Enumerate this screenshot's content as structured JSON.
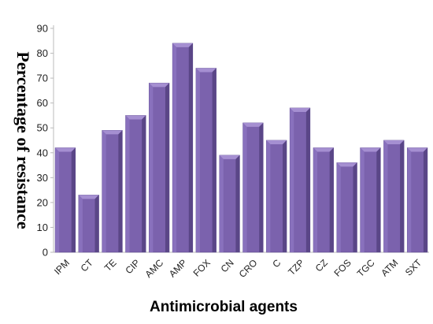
{
  "chart_data": {
    "type": "bar",
    "title": "",
    "xlabel": "Antimicrobial agents",
    "ylabel": "Percentage of resistance",
    "categories": [
      "IPM",
      "CT",
      "TE",
      "CIP",
      "AMC",
      "AMP",
      "FOX",
      "CN",
      "CRO",
      "C",
      "TZP",
      "CZ",
      "FOS",
      "TGC",
      "ATM",
      "SXT"
    ],
    "values": [
      42,
      23,
      49,
      55,
      68,
      84,
      74,
      39,
      52,
      45,
      58,
      42,
      36,
      42,
      45,
      42
    ],
    "ylim": [
      0,
      90
    ],
    "yticks": [
      0,
      10,
      20,
      30,
      40,
      50,
      60,
      70,
      80,
      90
    ],
    "grid": false,
    "bar_color": "#7b62ad",
    "bar_top_color": "#a58fd1",
    "bar_side_color": "#5a4687"
  }
}
